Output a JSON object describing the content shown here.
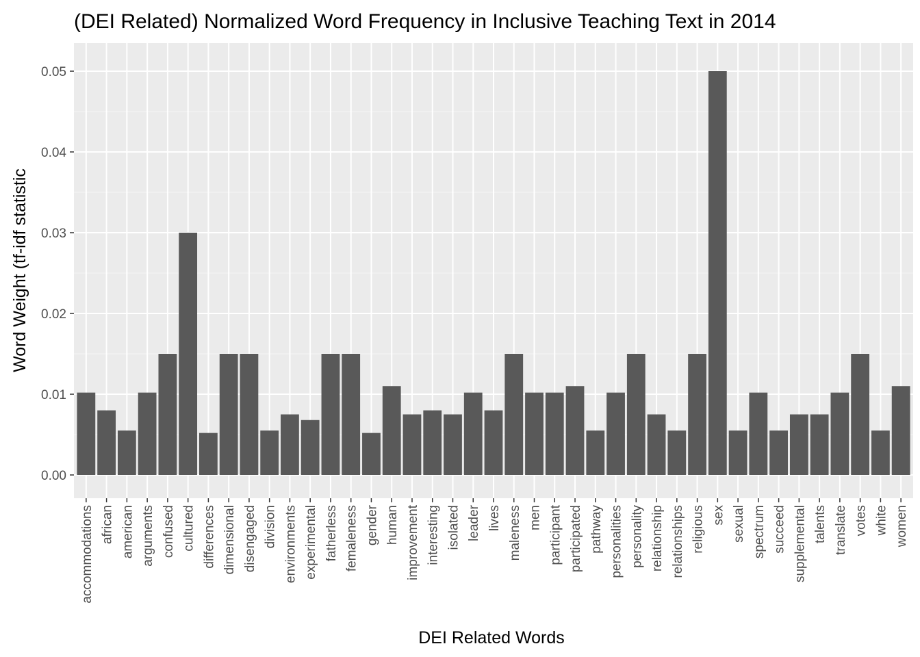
{
  "chart_data": {
    "type": "bar",
    "title": "(DEI Related) Normalized Word Frequency in Inclusive Teaching Text in 2014",
    "xlabel": "DEI Related Words",
    "ylabel": "Word Weight (tf-idf statistic",
    "ylim": [
      0,
      0.0535
    ],
    "yticks": [
      0.0,
      0.01,
      0.02,
      0.03,
      0.04,
      0.05
    ],
    "ytick_labels": [
      "0.00",
      "0.01",
      "0.02",
      "0.03",
      "0.04",
      "0.05"
    ],
    "grid": true,
    "legend": "none",
    "categories": [
      "accommodations",
      "african",
      "american",
      "arguments",
      "confused",
      "cultured",
      "differences",
      "dimensional",
      "disengaged",
      "division",
      "environments",
      "experimental",
      "fatherless",
      "femaleness",
      "gender",
      "human",
      "improvement",
      "interesting",
      "isolated",
      "leader",
      "lives",
      "maleness",
      "men",
      "participant",
      "participated",
      "pathway",
      "personalities",
      "personality",
      "relationship",
      "relationships",
      "religious",
      "sex",
      "sexual",
      "spectrum",
      "succeed",
      "supplemental",
      "talents",
      "translate",
      "votes",
      "white",
      "women"
    ],
    "values": [
      0.0102,
      0.008,
      0.0055,
      0.0102,
      0.015,
      0.03,
      0.0052,
      0.015,
      0.015,
      0.0055,
      0.0075,
      0.0068,
      0.015,
      0.015,
      0.0052,
      0.011,
      0.0075,
      0.008,
      0.0075,
      0.0102,
      0.008,
      0.015,
      0.0102,
      0.0102,
      0.011,
      0.0055,
      0.0102,
      0.015,
      0.0075,
      0.0055,
      0.015,
      0.05,
      0.0055,
      0.0102,
      0.0055,
      0.0075,
      0.0075,
      0.0102,
      0.015,
      0.0055,
      0.011
    ],
    "colors": {
      "bar": "#595959",
      "panel": "#ebebeb",
      "grid_major": "#ffffff",
      "grid_minor": "#f5f5f5",
      "tick": "#333333",
      "tick_text": "#4d4d4d"
    }
  }
}
